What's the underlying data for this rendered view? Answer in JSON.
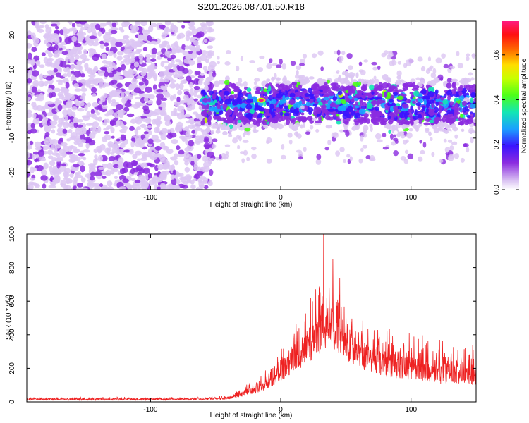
{
  "title": "S201.2026.087.01.50.R18",
  "chart_data": [
    {
      "type": "heatmap",
      "xlabel": "Height of straight line (km)",
      "ylabel": "Frequency (Hz)",
      "xlim": [
        -195,
        150
      ],
      "ylim": [
        -25,
        24
      ],
      "xticks": [
        -100,
        0,
        100
      ],
      "yticks": [
        -20,
        -10,
        0,
        10,
        20
      ],
      "colorbar": {
        "label": "Normalized spectral amplitude",
        "range": [
          0.0,
          0.75
        ],
        "ticks": [
          0.0,
          0.2,
          0.4,
          0.6
        ],
        "tick_labels": [
          "0.0",
          "0.2",
          "0.4",
          "0.6"
        ],
        "colormap": [
          "#ffffff",
          "#dcc6f3",
          "#8b2be0",
          "#3a14ff",
          "#1aa0ff",
          "#13e6b4",
          "#4cff18",
          "#c8ff00",
          "#ffdd00",
          "#ff6a00",
          "#ff1010",
          "#ff1a80"
        ]
      },
      "description_regions": {
        "noise_region_x": [
          -195,
          -60
        ],
        "signal_band_x": [
          -60,
          150
        ],
        "signal_center_freq": 0,
        "signal_band_halfwidth_hz": 6,
        "peak": {
          "x": -15,
          "y": 1,
          "value": 0.72
        }
      }
    },
    {
      "type": "line",
      "xlabel": "Height of straight line (km)",
      "ylabel": "SNR (10 * v/v)",
      "xlim": [
        -195,
        150
      ],
      "ylim": [
        0,
        1000
      ],
      "xticks": [
        -100,
        0,
        100
      ],
      "yticks": [
        0,
        200,
        400,
        600,
        800,
        1000
      ],
      "series": [
        {
          "name": "SNR",
          "color": "#ee2222",
          "envelope": [
            {
              "x": -195,
              "base": 10,
              "amp": 20
            },
            {
              "x": -60,
              "base": 10,
              "amp": 20
            },
            {
              "x": -40,
              "base": 15,
              "amp": 30
            },
            {
              "x": -30,
              "base": 30,
              "amp": 60
            },
            {
              "x": -15,
              "base": 60,
              "amp": 100
            },
            {
              "x": -5,
              "base": 100,
              "amp": 150
            },
            {
              "x": 5,
              "base": 150,
              "amp": 250
            },
            {
              "x": 15,
              "base": 200,
              "amp": 350
            },
            {
              "x": 25,
              "base": 250,
              "amp": 450
            },
            {
              "x": 32,
              "base": 300,
              "amp": 560
            },
            {
              "x": 40,
              "base": 300,
              "amp": 560
            },
            {
              "x": 50,
              "base": 250,
              "amp": 420
            },
            {
              "x": 60,
              "base": 200,
              "amp": 320
            },
            {
              "x": 80,
              "base": 150,
              "amp": 300
            },
            {
              "x": 110,
              "base": 120,
              "amp": 300
            },
            {
              "x": 130,
              "base": 100,
              "amp": 250
            },
            {
              "x": 150,
              "base": 100,
              "amp": 300
            }
          ],
          "peak": {
            "x": 33,
            "y": 1000
          }
        }
      ]
    }
  ]
}
